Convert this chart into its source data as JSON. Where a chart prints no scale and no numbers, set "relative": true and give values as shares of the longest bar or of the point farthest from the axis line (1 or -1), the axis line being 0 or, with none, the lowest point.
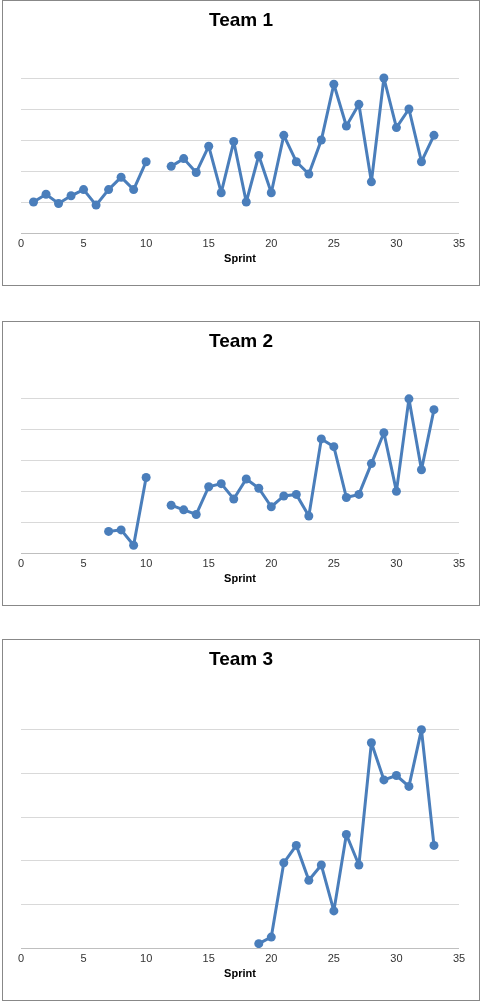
{
  "chart_data": [
    {
      "type": "line",
      "title": "Team 1",
      "xlabel": "Sprint",
      "relative": true,
      "xlim": [
        0,
        35
      ],
      "xticks": [
        0,
        5,
        10,
        15,
        20,
        25,
        30,
        35
      ],
      "grid": "y",
      "marker": "circle",
      "legend": false,
      "x": [
        1,
        2,
        3,
        4,
        5,
        6,
        7,
        8,
        9,
        10,
        11,
        12,
        13,
        14,
        15,
        16,
        17,
        18,
        19,
        20,
        21,
        22,
        23,
        24,
        25,
        26,
        27,
        28,
        29,
        30,
        31,
        32,
        33
      ],
      "series": [
        {
          "color": "#4a7ebb",
          "values": [
            0.2,
            0.25,
            0.19,
            0.24,
            0.28,
            0.18,
            0.28,
            0.36,
            0.28,
            0.46,
            null,
            0.43,
            0.48,
            0.39,
            0.56,
            0.26,
            0.59,
            0.2,
            0.5,
            0.26,
            0.63,
            0.46,
            0.38,
            0.6,
            0.96,
            0.69,
            0.83,
            0.33,
            1.0,
            0.68,
            0.8,
            0.46,
            0.63
          ]
        }
      ]
    },
    {
      "type": "line",
      "title": "Team 2",
      "xlabel": "Sprint",
      "relative": true,
      "xlim": [
        0,
        35
      ],
      "xticks": [
        0,
        5,
        10,
        15,
        20,
        25,
        30,
        35
      ],
      "grid": "y",
      "marker": "circle",
      "legend": false,
      "x": [
        7,
        8,
        9,
        10,
        11,
        12,
        13,
        14,
        15,
        16,
        17,
        18,
        19,
        20,
        21,
        22,
        23,
        24,
        25,
        26,
        27,
        28,
        29,
        30,
        31,
        32,
        33
      ],
      "series": [
        {
          "color": "#4a7ebb",
          "values": [
            0.14,
            0.15,
            0.05,
            0.49,
            null,
            0.31,
            0.28,
            0.25,
            0.43,
            0.45,
            0.35,
            0.48,
            0.42,
            0.3,
            0.37,
            0.38,
            0.24,
            0.74,
            0.69,
            0.36,
            0.38,
            0.58,
            0.78,
            0.4,
            1.0,
            0.54,
            0.93
          ]
        }
      ]
    },
    {
      "type": "line",
      "title": "Team 3",
      "xlabel": "Sprint",
      "relative": true,
      "xlim": [
        0,
        35
      ],
      "xticks": [
        0,
        5,
        10,
        15,
        20,
        25,
        30,
        35
      ],
      "grid": "y",
      "marker": "circle",
      "legend": false,
      "x": [
        19,
        20,
        21,
        22,
        23,
        24,
        25,
        26,
        27,
        28,
        29,
        30,
        31,
        32,
        33
      ],
      "series": [
        {
          "color": "#4a7ebb",
          "values": [
            0.02,
            0.05,
            0.39,
            0.47,
            0.31,
            0.38,
            0.17,
            0.52,
            0.38,
            0.94,
            0.77,
            0.79,
            0.74,
            1.0,
            0.47
          ]
        }
      ]
    }
  ]
}
